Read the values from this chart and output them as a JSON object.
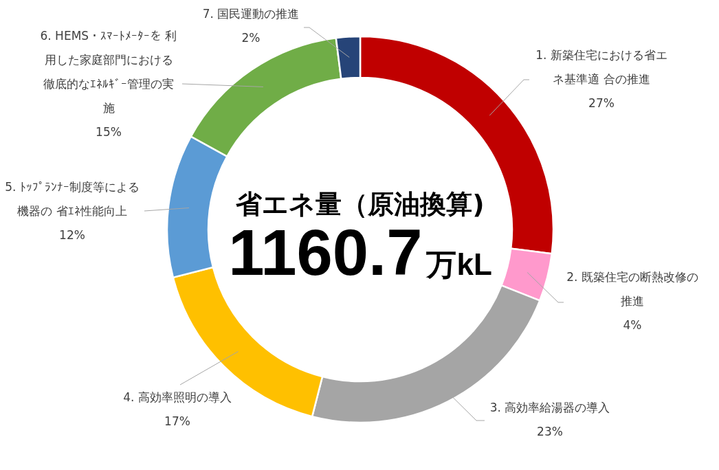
{
  "chart_data": {
    "type": "donut",
    "title": "省エネ量（原油換算)",
    "subtitle": "1160.7万kL",
    "categories": [
      "1. 新築住宅における省エネ基準適 合の推進",
      "2. 既築住宅の断熱改修の推進",
      "3. 高効率給湯器の導入",
      "4. 高効率照明の導入",
      "5. ﾄｯﾌﾟﾗﾝﾅｰ制度等による機器の 省ｴﾈ性能向上",
      "6. HEMS・ｽﾏｰﾄﾒｰﾀｰを 利用した家庭部門における徹底的なｴﾈﾙｷﾞｰ管理の実施",
      "7. 国民運動の推進"
    ],
    "values": [
      27,
      4,
      23,
      17,
      12,
      15,
      2
    ],
    "colors": [
      "#c00000",
      "#ff99cc",
      "#a5a5a5",
      "#ffc000",
      "#5b9bd5",
      "#70ad47",
      "#264478"
    ],
    "value_labels": [
      "27%",
      "4%",
      "23%",
      "17%",
      "12%",
      "15%",
      "2%"
    ]
  }
}
